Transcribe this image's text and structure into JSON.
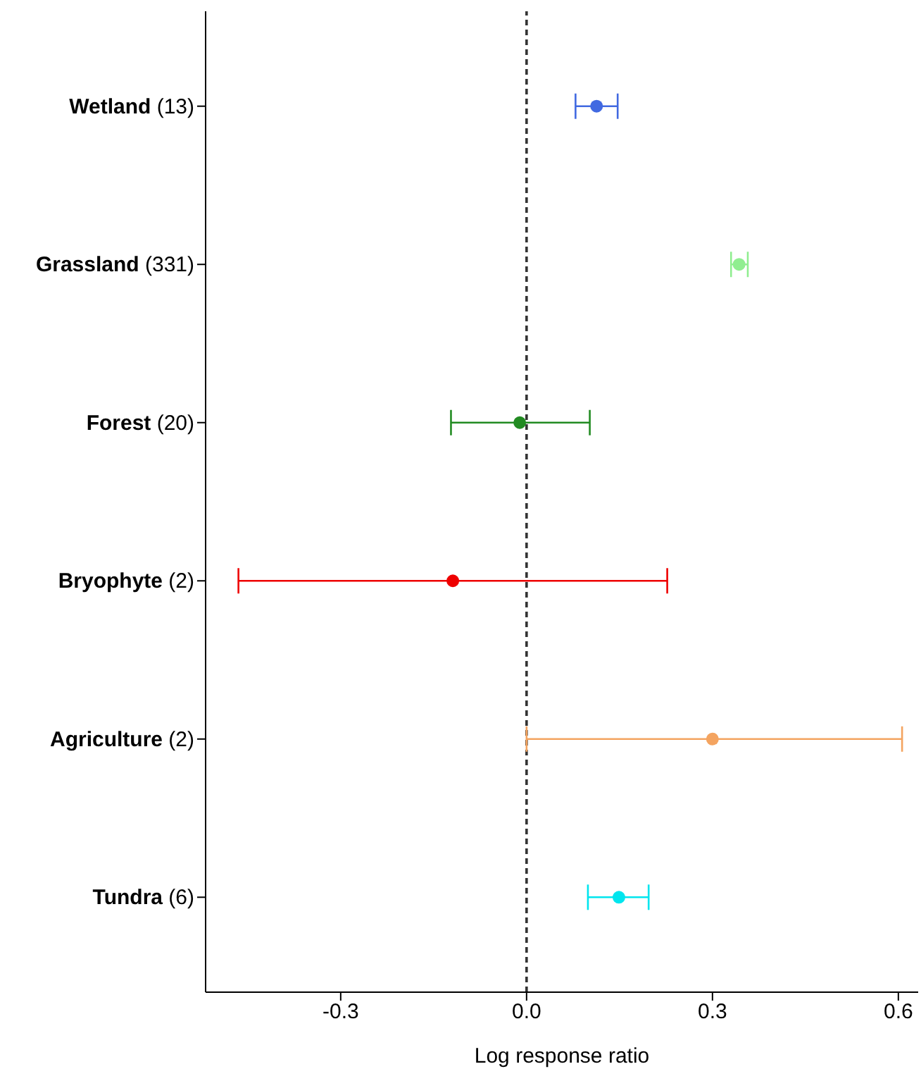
{
  "chart_data": {
    "type": "scatter",
    "orientation": "horizontal",
    "xlabel": "Log response ratio",
    "categories": [
      "Wetland (13)",
      "Grassland (331)",
      "Forest (20)",
      "Bryophyte (2)",
      "Agriculture (2)",
      "Tundra (6)"
    ],
    "values": [
      0.113,
      0.343,
      -0.011,
      -0.119,
      0.3,
      0.149
    ],
    "errors": [
      [
        0.079,
        0.147
      ],
      [
        0.33,
        0.357
      ],
      [
        -0.122,
        0.102
      ],
      [
        -0.465,
        0.227
      ],
      [
        0.0,
        0.606
      ],
      [
        0.099,
        0.197
      ]
    ],
    "colors": [
      "#4169e1",
      "#90ee90",
      "#228b22",
      "#ee0000",
      "#f4a460",
      "#00e5ee"
    ],
    "xlim": [
      -0.518,
      0.632
    ],
    "xticks": [
      {
        "value": -0.3,
        "label": "-0.3"
      },
      {
        "value": 0,
        "label": "0.0"
      },
      {
        "value": 0.3,
        "label": "0.3"
      },
      {
        "value": 0.6,
        "label": "0.6"
      }
    ],
    "ref_lines": [
      {
        "axis": "x",
        "value": 0,
        "color": "#333333",
        "line_style": "dashed"
      }
    ],
    "marker": "circle",
    "grid": false,
    "legend": false
  }
}
